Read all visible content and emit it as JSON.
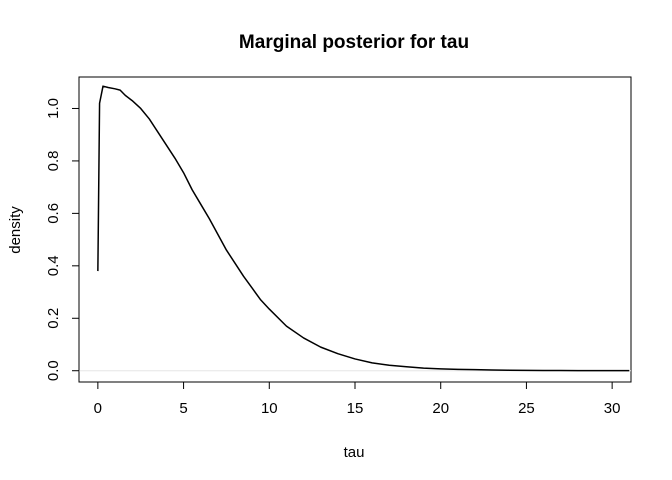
{
  "chart_data": {
    "type": "line",
    "title": "Marginal posterior for tau",
    "xlabel": "tau",
    "ylabel": "density",
    "xlim": [
      -1.1,
      31.1
    ],
    "ylim": [
      -0.043,
      1.12
    ],
    "x_ticks": [
      0,
      5,
      10,
      15,
      20,
      25,
      30
    ],
    "x_tick_labels": [
      "0",
      "5",
      "10",
      "15",
      "20",
      "25",
      "30"
    ],
    "y_ticks": [
      0.0,
      0.2,
      0.4,
      0.6,
      0.8,
      1.0
    ],
    "y_tick_labels": [
      "0.0",
      "0.2",
      "0.4",
      "0.6",
      "0.8",
      "1.0"
    ],
    "grid": false,
    "reference_line": {
      "y": 0,
      "color": "#e6e6e6"
    },
    "series": [
      {
        "color": "#000000",
        "x": [
          0,
          0.1,
          0.3,
          0.6,
          1,
          1.3,
          1.6,
          2,
          2.5,
          3,
          3.5,
          4,
          4.5,
          5,
          5.5,
          6,
          6.5,
          7,
          7.5,
          8,
          8.5,
          9,
          9.5,
          10,
          11,
          12,
          13,
          14,
          15,
          16,
          17,
          18,
          19,
          20,
          21,
          22,
          23,
          24,
          25,
          26,
          27,
          28,
          29,
          30,
          31
        ],
        "y": [
          0.38,
          1.02,
          1.085,
          1.08,
          1.075,
          1.07,
          1.05,
          1.03,
          1.0,
          0.96,
          0.91,
          0.86,
          0.81,
          0.755,
          0.69,
          0.635,
          0.58,
          0.52,
          0.46,
          0.41,
          0.36,
          0.315,
          0.27,
          0.235,
          0.17,
          0.125,
          0.09,
          0.065,
          0.045,
          0.03,
          0.021,
          0.015,
          0.01,
          0.007,
          0.005,
          0.004,
          0.003,
          0.002,
          0.0015,
          0.001,
          0.0008,
          0.0006,
          0.0005,
          0.0004,
          0.0003
        ]
      }
    ]
  }
}
